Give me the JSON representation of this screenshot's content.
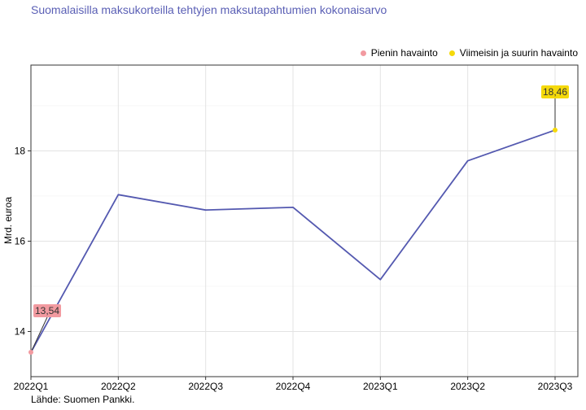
{
  "title": "Suomalaisilla maksukorteilla tehtyjen maksutapahtumien kokonaisarvo",
  "source": "Lähde: Suomen Pankki.",
  "legend": {
    "min_label": "Pienin havainto",
    "max_label": "Viimeisin ja suurin havainto"
  },
  "colors": {
    "line": "#5459b0",
    "min": "#f29aa0",
    "max": "#f5d90a",
    "title": "#5a5fb5"
  },
  "chart_data": {
    "type": "line",
    "categories": [
      "2022Q1",
      "2022Q2",
      "2022Q3",
      "2022Q4",
      "2023Q1",
      "2023Q2",
      "2023Q3"
    ],
    "series": [
      {
        "values": [
          13.54,
          17.03,
          16.69,
          16.75,
          15.15,
          17.78,
          18.46
        ]
      }
    ],
    "ylabel": "Mrd. euroa",
    "xlabel": "",
    "ylim": [
      13.0,
      19.9
    ],
    "yticks": [
      14,
      16,
      18
    ],
    "ytick_labels": [
      "14",
      "16",
      "18"
    ],
    "annotations": [
      {
        "label": "13,54",
        "index": 0,
        "kind": "min"
      },
      {
        "label": "18,46",
        "index": 6,
        "kind": "max"
      }
    ],
    "grid": true,
    "legend_position": "top-right"
  }
}
